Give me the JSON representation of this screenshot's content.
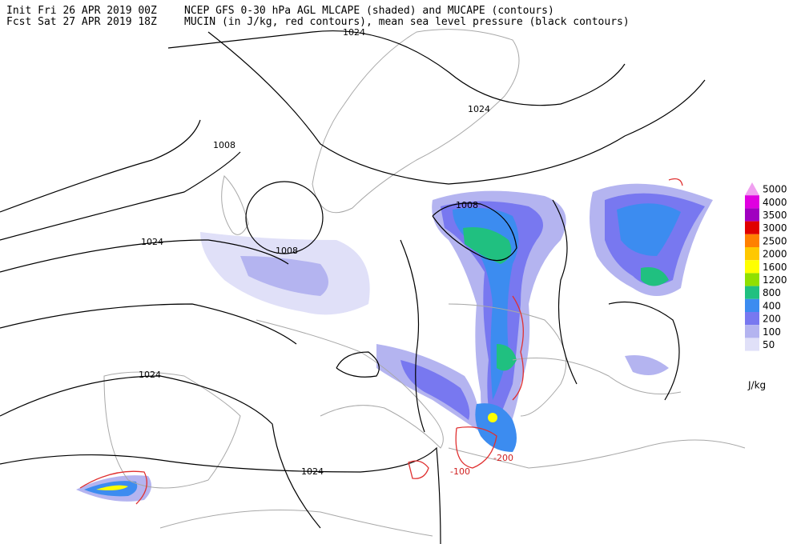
{
  "header": {
    "init": "Init  Fri 26 APR 2019 00Z",
    "fcst": "Fcst Sat 27 APR 2019 18Z",
    "title_line1": "NCEP GFS 0-30 hPa AGL MLCAPE (shaded) and MUCAPE (contours)",
    "title_line2": "MUCIN (in J/kg, red contours), mean sea level pressure (black contours)"
  },
  "contour_labels": [
    "1024",
    "1024",
    "1008",
    "1008",
    "1024",
    "1008",
    "1024",
    "1024",
    "-100",
    "-200"
  ],
  "legend": {
    "unit": "J/kg",
    "levels": [
      {
        "label": "5000",
        "color": "#f0a0f0"
      },
      {
        "label": "4000",
        "color": "#e000e0"
      },
      {
        "label": "3500",
        "color": "#a000c0"
      },
      {
        "label": "3000",
        "color": "#e00000"
      },
      {
        "label": "2500",
        "color": "#ff8000"
      },
      {
        "label": "2000",
        "color": "#ffc800"
      },
      {
        "label": "1600",
        "color": "#ffff00"
      },
      {
        "label": "1200",
        "color": "#90e000"
      },
      {
        "label": "800",
        "color": "#20c080"
      },
      {
        "label": "400",
        "color": "#3c8cf0"
      },
      {
        "label": "200",
        "color": "#7878f0"
      },
      {
        "label": "100",
        "color": "#b4b4f0"
      },
      {
        "label": "50",
        "color": "#e0e0f8"
      }
    ]
  }
}
